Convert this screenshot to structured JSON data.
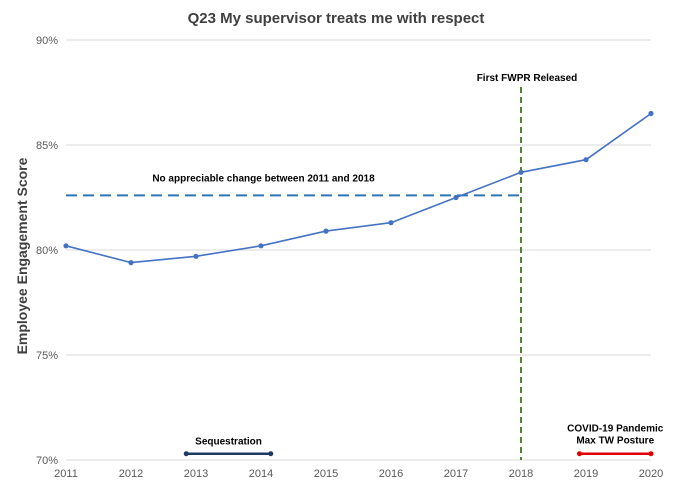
{
  "chart_data": {
    "type": "line",
    "title": "Q23 My supervisor treats me with respect",
    "xlabel": "",
    "ylabel": "Employee Engagement Score",
    "x": [
      2011,
      2012,
      2013,
      2014,
      2015,
      2016,
      2017,
      2018,
      2019,
      2020
    ],
    "series": [
      {
        "values": [
          80.2,
          79.4,
          79.7,
          80.2,
          80.9,
          81.3,
          82.5,
          83.7,
          84.3,
          86.5
        ],
        "color": "#4472C4"
      }
    ],
    "x_tick_labels": [
      "2011",
      "2012",
      "2013",
      "2014",
      "2015",
      "2016",
      "2017",
      "2018",
      "2019",
      "2020"
    ],
    "y_ticks": [
      70,
      75,
      80,
      85,
      90
    ],
    "y_tick_labels": [
      "70%",
      "75%",
      "80%",
      "85%",
      "90%"
    ],
    "xlim": [
      2011,
      2020
    ],
    "ylim": [
      70,
      90
    ],
    "grid": "horizontal",
    "legend": "none",
    "annotations": {
      "baseline": {
        "label": "No appreciable change between 2011 and 2018",
        "y": 82.6,
        "x_start": 2011,
        "x_end": 2018,
        "color": "#2E75B6"
      },
      "fwpr": {
        "label": "First FWPR Released",
        "x": 2018,
        "color": "#548235"
      },
      "sequestration": {
        "label": "Sequestration",
        "x_start": 2012.85,
        "x_end": 2014.15,
        "y": 70.3,
        "color": "#1F3864"
      },
      "covid": {
        "label_line1": "COVID-19 Pandemic",
        "label_line2": "Max TW Posture",
        "x_start": 2018.9,
        "x_end": 2020,
        "y": 70.3,
        "color": "#E00000"
      }
    }
  }
}
